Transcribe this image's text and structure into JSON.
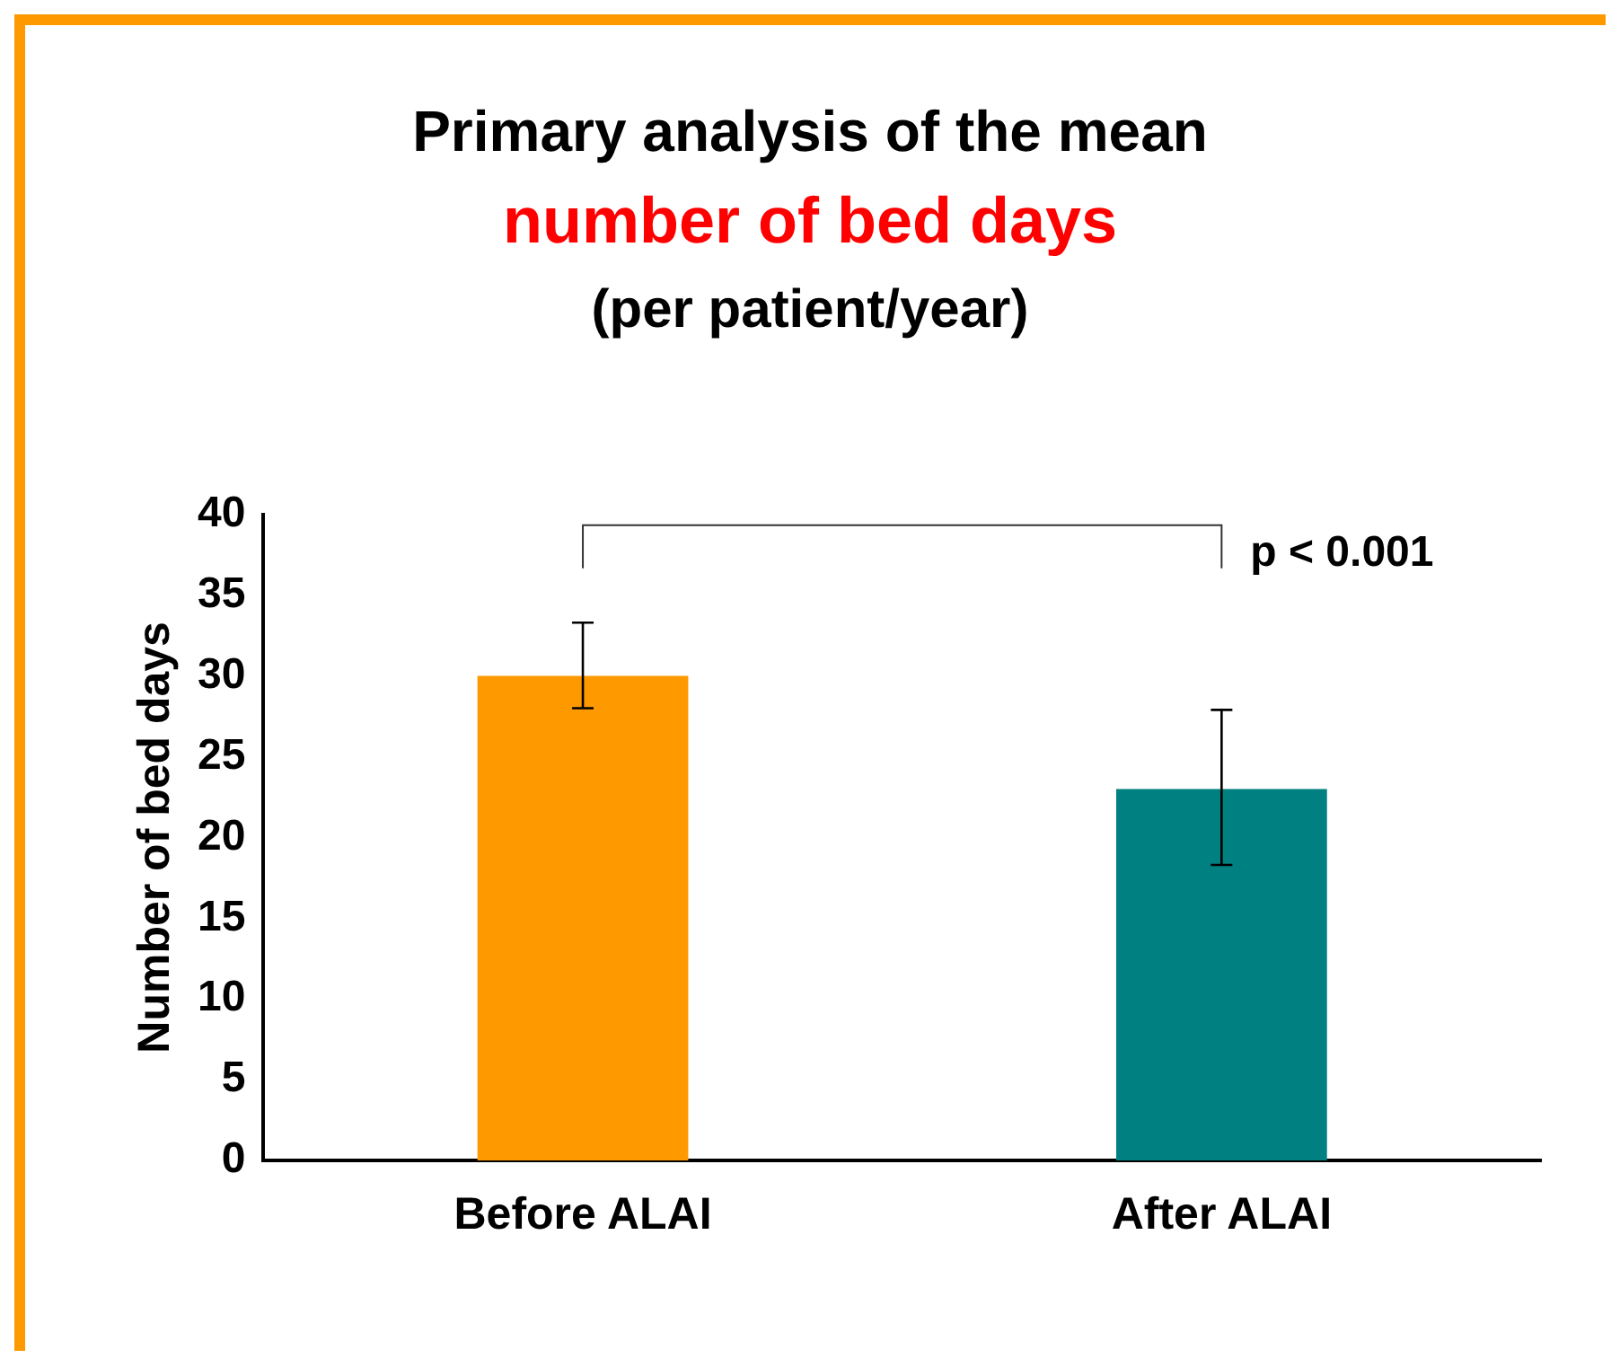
{
  "chart_data": {
    "type": "bar",
    "title": "Primary analysis of the mean\nnumber of bed days",
    "subtitle": "(per patient/year)",
    "ylabel": "Number of bed days",
    "categories": [
      "Before ALAI",
      "After ALAI"
    ],
    "values": [
      30,
      23
    ],
    "colors": [
      "#ff9900",
      "#008080"
    ],
    "errors": [
      [
        28,
        33.3
      ],
      [
        18.3,
        27.9
      ]
    ],
    "annotations": [
      "p < 0.001"
    ],
    "ylim": [
      0,
      40
    ],
    "yticks": [
      0,
      5,
      10,
      15,
      20,
      25,
      30,
      35,
      40
    ],
    "grid": false,
    "legend": false
  }
}
